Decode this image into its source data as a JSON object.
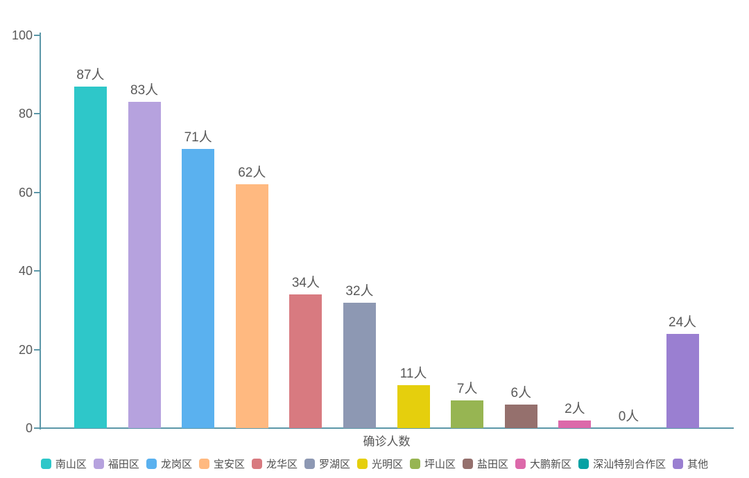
{
  "chart_data": {
    "type": "bar",
    "title": "",
    "xlabel": "确诊人数",
    "ylabel": "",
    "categories": [
      "南山区",
      "福田区",
      "龙岗区",
      "宝安区",
      "龙华区",
      "罗湖区",
      "光明区",
      "坪山区",
      "盐田区",
      "大鹏新区",
      "深汕特别合作区",
      "其他"
    ],
    "values": [
      87,
      83,
      71,
      62,
      34,
      32,
      11,
      7,
      6,
      2,
      0,
      24
    ],
    "data_labels": [
      "87人",
      "83人",
      "71人",
      "62人",
      "34人",
      "32人",
      "11人",
      "7人",
      "6人",
      "2人",
      "0人",
      "24人"
    ],
    "colors": [
      "#2ec7c9",
      "#b6a2de",
      "#5ab1ef",
      "#ffb980",
      "#d87a80",
      "#8d98b3",
      "#e5cf0d",
      "#97b552",
      "#95706d",
      "#dc69aa",
      "#07a2a4",
      "#9a7fd1"
    ],
    "unit_suffix": "人",
    "ylim": [
      0,
      100
    ],
    "y_ticks": [
      0,
      20,
      40,
      60,
      80,
      100
    ],
    "grid": false,
    "legend_position": "bottom",
    "legend": [
      "南山区",
      "福田区",
      "龙岗区",
      "宝安区",
      "龙华区",
      "罗湖区",
      "光明区",
      "坪山区",
      "盐田区",
      "大鹏新区",
      "深汕特别合作区",
      "其他"
    ]
  },
  "theme": {
    "axis_line_color": "#5b97a8",
    "value_label_color": "#595959",
    "tick_label_color": "#595959",
    "legend_text_color": "#4f4f4f",
    "background_color": "#ffffff"
  }
}
